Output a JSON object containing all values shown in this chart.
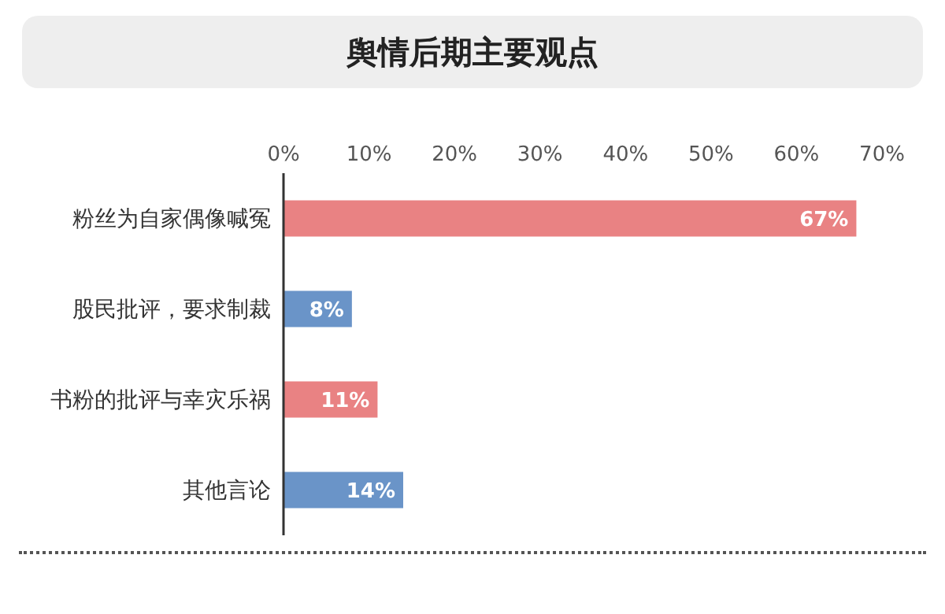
{
  "chart_data": {
    "type": "bar",
    "orientation": "horizontal",
    "title": "舆情后期主要观点",
    "categories": [
      "粉丝为自家偶像喊冤",
      "股民批评，要求制裁",
      "书粉的批评与幸灾乐祸",
      "其他言论"
    ],
    "values": [
      67,
      8,
      11,
      14
    ],
    "colors": [
      "#e98283",
      "#6a94c8",
      "#e98283",
      "#6a94c8"
    ],
    "value_labels": [
      "67%",
      "8%",
      "11%",
      "14%"
    ],
    "xlim": [
      0,
      70
    ],
    "xticks": [
      {
        "value": 0,
        "label": "0%"
      },
      {
        "value": 10,
        "label": "10%"
      },
      {
        "value": 20,
        "label": "20%"
      },
      {
        "value": 30,
        "label": "30%"
      },
      {
        "value": 40,
        "label": "40%"
      },
      {
        "value": 50,
        "label": "50%"
      },
      {
        "value": 60,
        "label": "60%"
      },
      {
        "value": 70,
        "label": "70%"
      }
    ],
    "grid": false,
    "legend": false
  }
}
